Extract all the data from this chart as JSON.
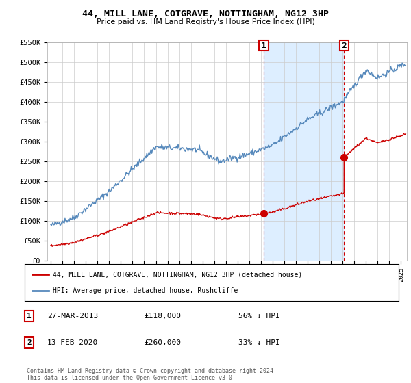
{
  "title": "44, MILL LANE, COTGRAVE, NOTTINGHAM, NG12 3HP",
  "subtitle": "Price paid vs. HM Land Registry's House Price Index (HPI)",
  "legend_line1": "44, MILL LANE, COTGRAVE, NOTTINGHAM, NG12 3HP (detached house)",
  "legend_line2": "HPI: Average price, detached house, Rushcliffe",
  "sale1_date": "27-MAR-2013",
  "sale1_price": "£118,000",
  "sale1_hpi": "56% ↓ HPI",
  "sale1_year": 2013.23,
  "sale1_value": 118000,
  "sale2_date": "13-FEB-2020",
  "sale2_price": "£260,000",
  "sale2_hpi": "33% ↓ HPI",
  "sale2_year": 2020.12,
  "sale2_value": 260000,
  "ylim": [
    0,
    550000
  ],
  "yticks": [
    0,
    50000,
    100000,
    150000,
    200000,
    250000,
    300000,
    350000,
    400000,
    450000,
    500000,
    550000
  ],
  "xlim_start": 1994.7,
  "xlim_end": 2025.5,
  "xticks": [
    1995,
    1996,
    1997,
    1998,
    1999,
    2000,
    2001,
    2002,
    2003,
    2004,
    2005,
    2006,
    2007,
    2008,
    2009,
    2010,
    2011,
    2012,
    2013,
    2014,
    2015,
    2016,
    2017,
    2018,
    2019,
    2020,
    2021,
    2022,
    2023,
    2024,
    2025
  ],
  "bg_color": "#ffffff",
  "plot_bg_color": "#ffffff",
  "grid_color": "#cccccc",
  "red_line_color": "#cc0000",
  "blue_line_color": "#5588bb",
  "shade_color": "#ddeeff",
  "footnote": "Contains HM Land Registry data © Crown copyright and database right 2024.\nThis data is licensed under the Open Government Licence v3.0."
}
